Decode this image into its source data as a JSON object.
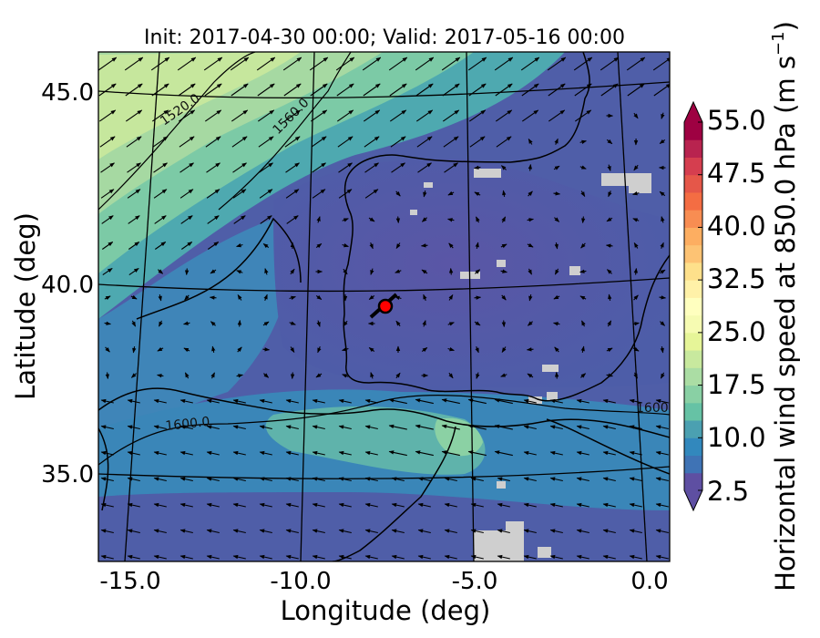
{
  "map": {
    "title": "Init: 2017-04-30 00:00; Valid: 2017-05-16 00:00",
    "xlabel": "Longitude (deg)",
    "ylabel": "Latitude (deg)",
    "x_ticks": [
      "-15.0",
      "-10.0",
      "-5.0",
      "0.0"
    ],
    "y_ticks": [
      "45.0",
      "40.0",
      "35.0"
    ],
    "contour_labels": [
      "1520.0",
      "1560.0",
      "1600.0",
      "1600"
    ],
    "marker": {
      "label": "site-marker",
      "color": "#ff0000"
    }
  },
  "colorbar": {
    "label": "Horizontal wind speed at 850.0 hPa (m s",
    "label_sup": "−1",
    "label_close": ")",
    "ticks": [
      "55.0",
      "47.5",
      "40.0",
      "32.5",
      "25.0",
      "17.5",
      "10.0",
      "2.5"
    ],
    "range": [
      2.5,
      55.0
    ],
    "colors": [
      "#5e4fa2",
      "#3f73b5",
      "#3288bd",
      "#4ba0b1",
      "#66c2a5",
      "#89d0a4",
      "#abdda4",
      "#c8e99e",
      "#e6f598",
      "#f6fbb2",
      "#ffffbf",
      "#fff1a8",
      "#fee08b",
      "#fdc374",
      "#fdae61",
      "#f88d52",
      "#f46d43",
      "#e55749",
      "#d53e4f",
      "#b8234f",
      "#9e0142"
    ]
  }
}
